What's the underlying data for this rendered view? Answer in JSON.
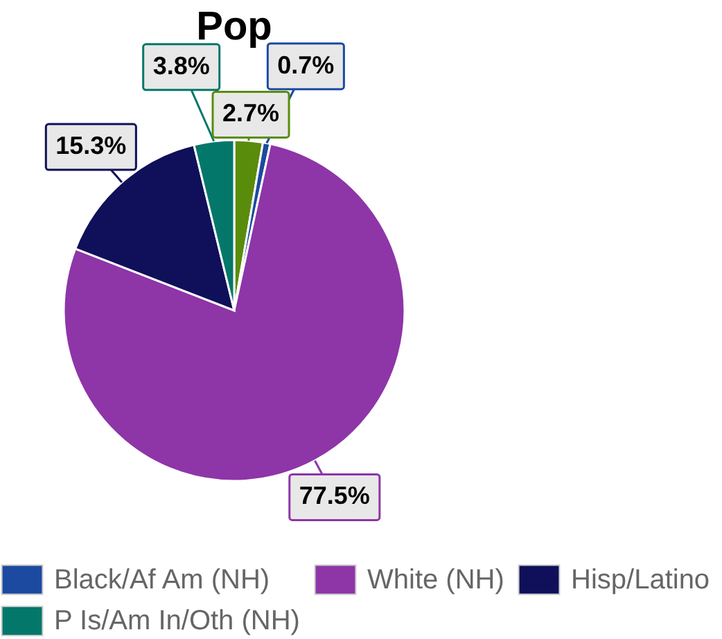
{
  "chart_data": {
    "type": "pie",
    "title": "Pop",
    "categories": [
      null,
      "Black/Af Am (NH)",
      "White (NH)",
      "Hisp/Latino",
      "P Is/Am In/Oth (NH)"
    ],
    "values": [
      2.7,
      0.7,
      77.5,
      15.3,
      3.8
    ],
    "colors": [
      "#5a8c0c",
      "#1c4aa0",
      "#8e35a8",
      "#0f1059",
      "#04776b"
    ],
    "value_labels": [
      "2.7%",
      "0.7%",
      "77.5%",
      "15.3%",
      "3.8%"
    ],
    "legend": "bottom"
  }
}
